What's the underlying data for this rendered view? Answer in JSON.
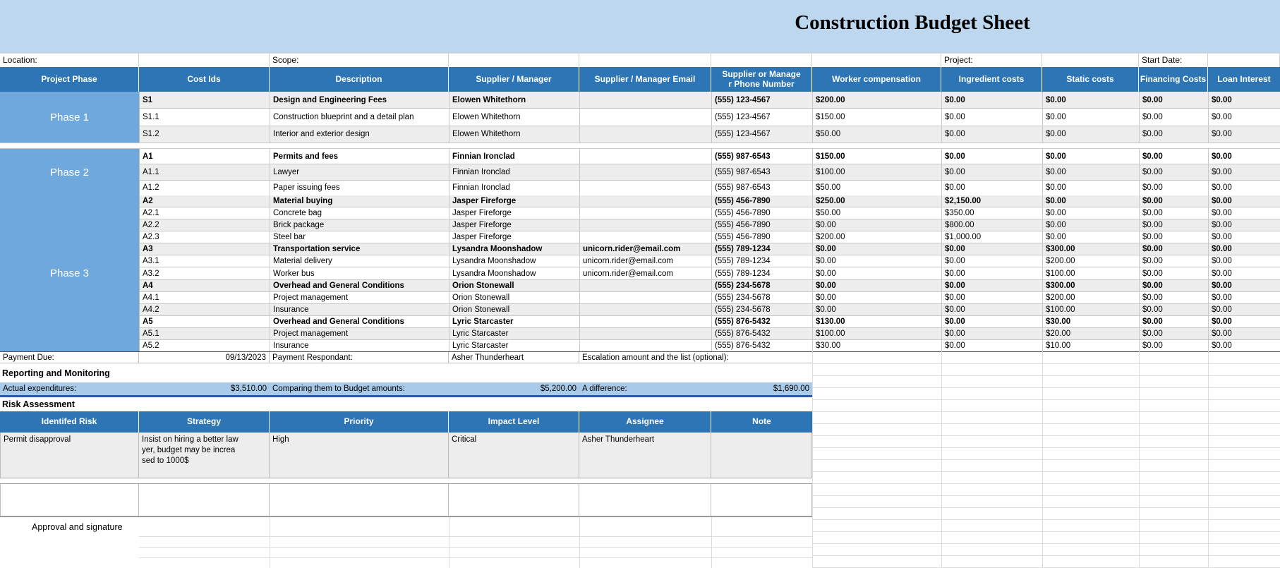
{
  "title": "Construction Budget Sheet",
  "top_labels": {
    "location": "Location:",
    "scope": "Scope:",
    "project": "Project:",
    "start_date": "Start Date:"
  },
  "main_table": {
    "columns": [
      "Project Phase",
      "Cost Ids",
      "Description",
      "Supplier / Manager",
      "Supplier / Manager Email",
      "Supplier or Manage\nr Phone Number",
      "Worker compensation",
      "Ingredient costs",
      "Static costs",
      "Financing Costs",
      "Loan Interest"
    ],
    "phases": [
      {
        "name": "Phase 1",
        "rows": [
          {
            "bold": true,
            "shaded": true,
            "cells": [
              "S1",
              "Design and Engineering Fees",
              "Elowen Whitethorn",
              "",
              "(555) 123-4567",
              "$200.00",
              "$0.00",
              "$0.00",
              "$0.00",
              "$0.00"
            ]
          },
          {
            "bold": false,
            "shaded": false,
            "cells": [
              "S1.1",
              "Construction blueprint and a detail plan",
              "Elowen Whitethorn",
              "",
              "(555) 123-4567",
              "$150.00",
              "$0.00",
              "$0.00",
              "$0.00",
              "$0.00"
            ]
          },
          {
            "bold": false,
            "shaded": true,
            "cells": [
              "S1.2",
              "Interior and exterior design",
              "Elowen Whitethorn",
              "",
              "(555) 123-4567",
              "$50.00",
              "$0.00",
              "$0.00",
              "$0.00",
              "$0.00"
            ]
          }
        ]
      },
      {
        "name": "Phase 2",
        "rows": [
          {
            "bold": true,
            "shaded": false,
            "cells": [
              "A1",
              "Permits and fees",
              "Finnian Ironclad",
              "",
              "(555) 987-6543",
              "$150.00",
              "$0.00",
              "$0.00",
              "$0.00",
              "$0.00"
            ]
          },
          {
            "bold": false,
            "shaded": true,
            "cells": [
              "A1.1",
              "Lawyer",
              "Finnian Ironclad",
              "",
              "(555) 987-6543",
              "$100.00",
              "$0.00",
              "$0.00",
              "$0.00",
              "$0.00"
            ]
          },
          {
            "bold": false,
            "shaded": false,
            "cells": [
              "A1.2",
              "Paper issuing fees",
              "Finnian Ironclad",
              "",
              "(555) 987-6543",
              "$50.00",
              "$0.00",
              "$0.00",
              "$0.00",
              "$0.00"
            ]
          }
        ]
      },
      {
        "name": "Phase 3",
        "rows": [
          {
            "bold": true,
            "shaded": true,
            "cells": [
              "A2",
              "Material buying",
              "Jasper Fireforge",
              "",
              "(555) 456-7890",
              "$250.00",
              "$2,150.00",
              "$0.00",
              "$0.00",
              "$0.00"
            ]
          },
          {
            "bold": false,
            "shaded": false,
            "cells": [
              "A2.1",
              "Concrete bag",
              "Jasper Fireforge",
              "",
              "(555) 456-7890",
              "$50.00",
              "$350.00",
              "$0.00",
              "$0.00",
              "$0.00"
            ]
          },
          {
            "bold": false,
            "shaded": true,
            "cells": [
              "A2.2",
              "Brick package",
              "Jasper Fireforge",
              "",
              "(555) 456-7890",
              "$0.00",
              "$800.00",
              "$0.00",
              "$0.00",
              "$0.00"
            ]
          },
          {
            "bold": false,
            "shaded": false,
            "cells": [
              "A2.3",
              "Steel bar",
              "Jasper Fireforge",
              "",
              "(555) 456-7890",
              "$200.00",
              "$1,000.00",
              "$0.00",
              "$0.00",
              "$0.00"
            ]
          },
          {
            "bold": true,
            "shaded": true,
            "cells": [
              "A3",
              "Transportation service",
              "Lysandra Moonshadow",
              "unicorn.rider@email.com",
              "(555) 789-1234",
              "$0.00",
              "$0.00",
              "$300.00",
              "$0.00",
              "$0.00"
            ]
          },
          {
            "bold": false,
            "shaded": false,
            "cells": [
              "A3.1",
              "Material delivery",
              "Lysandra Moonshadow",
              "unicorn.rider@email.com",
              "(555) 789-1234",
              "$0.00",
              "$0.00",
              "$200.00",
              "$0.00",
              "$0.00"
            ]
          },
          {
            "bold": false,
            "shaded": false,
            "cells": [
              "A3.2",
              "Worker bus",
              "Lysandra Moonshadow",
              "unicorn.rider@email.com",
              "(555) 789-1234",
              "$0.00",
              "$0.00",
              "$100.00",
              "$0.00",
              "$0.00"
            ]
          },
          {
            "bold": true,
            "shaded": true,
            "cells": [
              "A4",
              "Overhead and General Conditions",
              "Orion Stonewall",
              "",
              "(555) 234-5678",
              "$0.00",
              "$0.00",
              "$300.00",
              "$0.00",
              "$0.00"
            ]
          },
          {
            "bold": false,
            "shaded": false,
            "cells": [
              "A4.1",
              "Project management",
              "Orion Stonewall",
              "",
              "(555) 234-5678",
              "$0.00",
              "$0.00",
              "$200.00",
              "$0.00",
              "$0.00"
            ]
          },
          {
            "bold": false,
            "shaded": true,
            "cells": [
              "A4.2",
              "Insurance",
              "Orion Stonewall",
              "",
              "(555) 234-5678",
              "$0.00",
              "$0.00",
              "$100.00",
              "$0.00",
              "$0.00"
            ]
          },
          {
            "bold": true,
            "shaded": false,
            "cells": [
              "A5",
              "Overhead and General Conditions",
              "Lyric Starcaster",
              "",
              "(555) 876-5432",
              "$130.00",
              "$0.00",
              "$30.00",
              "$0.00",
              "$0.00"
            ]
          },
          {
            "bold": false,
            "shaded": true,
            "cells": [
              "A5.1",
              "Project management",
              "Lyric Starcaster",
              "",
              "(555) 876-5432",
              "$100.00",
              "$0.00",
              "$20.00",
              "$0.00",
              "$0.00"
            ]
          },
          {
            "bold": false,
            "shaded": false,
            "cells": [
              "A5.2",
              "Insurance",
              "Lyric Starcaster",
              "",
              "(555) 876-5432",
              "$30.00",
              "$0.00",
              "$10.00",
              "$0.00",
              "$0.00"
            ]
          }
        ]
      }
    ]
  },
  "payment": {
    "due_label": "Payment Due:",
    "due_date": "09/13/2023",
    "respondant_label": "Payment Respondant:",
    "respondant": "Asher Thunderheart",
    "escalation_label": "Escalation amount and the list (optional):"
  },
  "reporting": {
    "heading": "Reporting and Monitoring",
    "actual_label": "Actual expenditures:",
    "actual_value": "$3,510.00",
    "compare_label": "Comparing them to Budget amounts:",
    "compare_value": "$5,200.00",
    "difference_label": "A difference:",
    "difference_value": "$1,690.00"
  },
  "risk": {
    "heading": "Risk Assessment",
    "columns": [
      "Identifed Risk",
      "Strategy",
      "Priority",
      "Impact Level",
      "Assignee",
      "Note"
    ],
    "rows": [
      {
        "cells": [
          "Permit disapproval",
          "Insist on hiring a better law\nyer, budget may be increa\nsed to 1000$",
          "High",
          "Critical",
          "Asher Thunderheart",
          ""
        ]
      },
      {
        "cells": [
          "",
          "",
          "",
          "",
          "",
          ""
        ]
      }
    ]
  },
  "approval": {
    "label": "Approval and signature"
  },
  "colors": {
    "banner_blue": "#BDD7EE",
    "header_blue": "#2E75B6",
    "phase_blue": "#6FA8DC",
    "band_gray": "#EDEDED",
    "highlight_blue": "#A9CBE9",
    "highlight_border": "#2B57A8"
  }
}
